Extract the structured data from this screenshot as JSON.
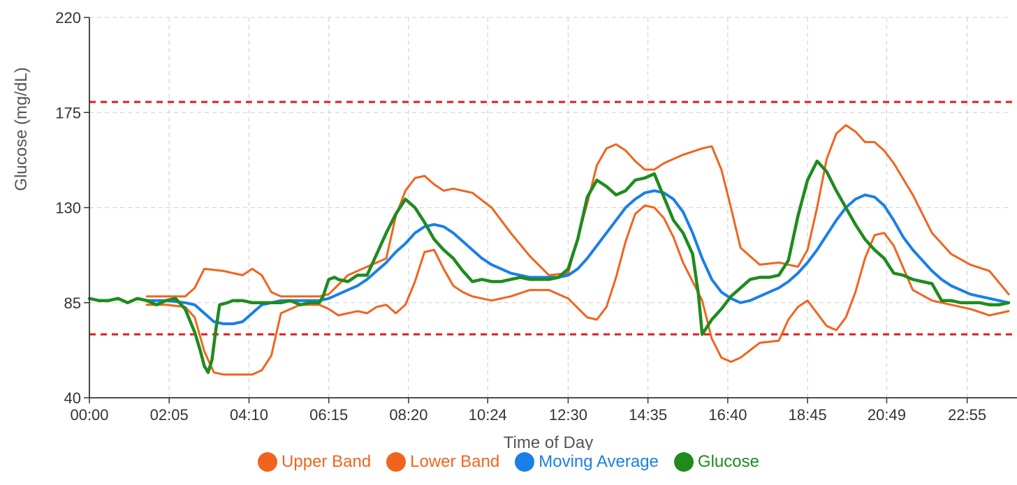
{
  "chart_data": {
    "type": "line",
    "xlabel": "Time of Day",
    "ylabel": "Glucose (mg/dL)",
    "xlim_hours": [
      0,
      24
    ],
    "ylim": [
      40,
      220
    ],
    "y_ticks": [
      40,
      85,
      130,
      175,
      220
    ],
    "x_ticks": [
      "00:00",
      "02:05",
      "04:10",
      "06:15",
      "08:20",
      "10:24",
      "12:30",
      "14:35",
      "16:40",
      "18:45",
      "20:49",
      "22:55"
    ],
    "x_tick_hours": [
      0,
      2.083,
      4.167,
      6.25,
      8.333,
      10.4,
      12.5,
      14.583,
      16.667,
      18.75,
      20.817,
      22.917
    ],
    "grid": true,
    "legend_position": "bottom",
    "reference_lines": [
      {
        "y": 180,
        "color": "#e8191c",
        "style": "dashed"
      },
      {
        "y": 70,
        "color": "#e8191c",
        "style": "dashed"
      }
    ],
    "series": [
      {
        "name": "Upper Band",
        "color": "#f0641e",
        "x_hours": [
          1.5,
          2.0,
          2.5,
          2.75,
          3.0,
          3.5,
          4.0,
          4.25,
          4.5,
          4.75,
          5.0,
          6.0,
          6.25,
          6.75,
          7.25,
          7.75,
          8.0,
          8.25,
          8.5,
          8.75,
          9.0,
          9.25,
          9.5,
          10.0,
          10.5,
          11.0,
          11.5,
          12.0,
          12.5,
          13.0,
          13.25,
          13.5,
          13.75,
          14.0,
          14.25,
          14.5,
          14.75,
          15.0,
          15.5,
          16.0,
          16.25,
          16.5,
          16.75,
          17.0,
          17.5,
          18.0,
          18.5,
          18.75,
          19.0,
          19.25,
          19.5,
          19.75,
          20.0,
          20.25,
          20.5,
          20.75,
          21.0,
          21.5,
          22.0,
          22.5,
          23.0,
          23.5,
          24.0
        ],
        "y": [
          88,
          88,
          88,
          92,
          101,
          100,
          98,
          101,
          98,
          90,
          88,
          88,
          89,
          98,
          102,
          106,
          126,
          138,
          144,
          145,
          141,
          138,
          139,
          137,
          130,
          118,
          107,
          98,
          99,
          132,
          150,
          158,
          160,
          157,
          152,
          148,
          148,
          151,
          155,
          158,
          159,
          148,
          130,
          111,
          103,
          104,
          102,
          110,
          130,
          153,
          165,
          169,
          166,
          161,
          161,
          157,
          151,
          136,
          118,
          108,
          103,
          100,
          89
        ]
      },
      {
        "name": "Lower Band",
        "color": "#f0641e",
        "x_hours": [
          1.5,
          2.0,
          2.5,
          2.75,
          3.0,
          3.25,
          3.5,
          4.0,
          4.25,
          4.5,
          4.75,
          5.0,
          5.5,
          6.0,
          6.25,
          6.5,
          7.0,
          7.25,
          7.5,
          7.75,
          8.0,
          8.25,
          8.5,
          8.75,
          9.0,
          9.25,
          9.5,
          9.75,
          10.0,
          10.5,
          11.0,
          11.5,
          12.0,
          12.5,
          13.0,
          13.25,
          13.5,
          13.75,
          14.0,
          14.25,
          14.5,
          14.75,
          15.0,
          15.25,
          15.5,
          16.0,
          16.25,
          16.5,
          16.75,
          17.0,
          17.5,
          18.0,
          18.25,
          18.5,
          18.75,
          19.0,
          19.25,
          19.5,
          19.75,
          20.0,
          20.25,
          20.5,
          20.75,
          21.0,
          21.5,
          22.0,
          22.5,
          23.0,
          23.5,
          24.0
        ],
        "y": [
          84,
          84,
          83,
          78,
          62,
          52,
          51,
          51,
          51,
          53,
          60,
          80,
          84,
          84,
          82,
          79,
          81,
          80,
          83,
          84,
          80,
          84,
          95,
          109,
          110,
          101,
          93,
          90,
          88,
          86,
          88,
          91,
          91,
          87,
          78,
          77,
          83,
          97,
          114,
          127,
          131,
          130,
          125,
          116,
          104,
          86,
          68,
          59,
          57,
          59,
          66,
          67,
          77,
          83,
          86,
          80,
          74,
          72,
          78,
          90,
          106,
          117,
          118,
          112,
          91,
          86,
          84,
          82,
          79,
          81
        ]
      },
      {
        "name": "Moving Average",
        "color": "#1a7fe8",
        "x_hours": [
          1.5,
          2.0,
          2.5,
          2.75,
          3.0,
          3.25,
          3.5,
          3.75,
          4.0,
          4.25,
          4.5,
          5.0,
          5.5,
          6.0,
          6.25,
          6.5,
          6.75,
          7.0,
          7.25,
          7.5,
          7.75,
          8.0,
          8.25,
          8.5,
          8.75,
          9.0,
          9.25,
          9.5,
          9.75,
          10.0,
          10.25,
          10.5,
          10.75,
          11.0,
          11.25,
          11.5,
          11.75,
          12.0,
          12.25,
          12.5,
          12.75,
          13.0,
          13.25,
          13.5,
          13.75,
          14.0,
          14.25,
          14.5,
          14.75,
          15.0,
          15.25,
          15.5,
          15.75,
          16.0,
          16.25,
          16.5,
          16.75,
          17.0,
          17.25,
          17.5,
          17.75,
          18.0,
          18.25,
          18.5,
          18.75,
          19.0,
          19.25,
          19.5,
          19.75,
          20.0,
          20.25,
          20.5,
          20.75,
          21.0,
          21.25,
          21.5,
          21.75,
          22.0,
          22.25,
          22.5,
          22.75,
          23.0,
          23.25,
          23.5,
          23.75,
          24.0
        ],
        "y": [
          86,
          86,
          85,
          84,
          80,
          76,
          75,
          75,
          76,
          80,
          84,
          86,
          86,
          86,
          87,
          89,
          91,
          93,
          96,
          100,
          104,
          109,
          113,
          118,
          121,
          122,
          121,
          118,
          114,
          110,
          106,
          103,
          101,
          99,
          98,
          97,
          97,
          97,
          97,
          98,
          101,
          106,
          112,
          118,
          124,
          130,
          134,
          137,
          138,
          137,
          134,
          128,
          118,
          106,
          96,
          90,
          87,
          85,
          86,
          88,
          90,
          92,
          95,
          99,
          104,
          110,
          117,
          124,
          130,
          134,
          136,
          135,
          131,
          124,
          116,
          110,
          105,
          100,
          96,
          93,
          91,
          89,
          88,
          87,
          86,
          85
        ]
      },
      {
        "name": "Glucose",
        "color": "#1f8b1f",
        "x_hours": [
          0,
          0.25,
          0.5,
          0.75,
          1.0,
          1.25,
          1.5,
          1.75,
          2.0,
          2.25,
          2.5,
          2.75,
          2.9,
          3.0,
          3.1,
          3.2,
          3.3,
          3.4,
          3.6,
          3.75,
          4.0,
          4.25,
          4.5,
          4.75,
          5.0,
          5.25,
          5.5,
          5.75,
          6.0,
          6.1,
          6.25,
          6.4,
          6.5,
          6.75,
          7.0,
          7.25,
          7.5,
          7.75,
          8.0,
          8.25,
          8.5,
          8.75,
          9.0,
          9.25,
          9.5,
          9.75,
          10.0,
          10.25,
          10.5,
          10.75,
          11.0,
          11.25,
          11.5,
          11.75,
          12.0,
          12.25,
          12.5,
          12.75,
          13.0,
          13.25,
          13.5,
          13.75,
          14.0,
          14.25,
          14.5,
          14.75,
          15.0,
          15.25,
          15.5,
          15.75,
          15.9,
          16.0,
          16.25,
          16.5,
          16.75,
          17.0,
          17.25,
          17.5,
          17.75,
          18.0,
          18.25,
          18.5,
          18.75,
          19.0,
          19.25,
          19.5,
          19.75,
          20.0,
          20.25,
          20.5,
          20.75,
          21.0,
          21.25,
          21.5,
          21.75,
          22.0,
          22.25,
          22.5,
          22.75,
          23.0,
          23.25,
          23.5,
          23.75,
          24.0
        ],
        "y": [
          87,
          86,
          86,
          87,
          85,
          87,
          86,
          84,
          86,
          87,
          82,
          71,
          62,
          55,
          52,
          58,
          72,
          84,
          85,
          86,
          86,
          85,
          85,
          85,
          85,
          86,
          84,
          85,
          85,
          88,
          96,
          97,
          96,
          95,
          98,
          98,
          108,
          118,
          127,
          134,
          130,
          123,
          115,
          110,
          106,
          100,
          95,
          96,
          95,
          95,
          96,
          97,
          96,
          96,
          96,
          97,
          101,
          115,
          135,
          143,
          140,
          136,
          138,
          143,
          144,
          146,
          135,
          124,
          118,
          108,
          89,
          70,
          77,
          82,
          88,
          92,
          96,
          97,
          97,
          98,
          105,
          126,
          143,
          152,
          147,
          138,
          130,
          122,
          115,
          110,
          106,
          99,
          98,
          96,
          95,
          94,
          86,
          86,
          85,
          85,
          85,
          84,
          84,
          85
        ]
      }
    ]
  },
  "legend": {
    "items": [
      {
        "label": "Upper Band",
        "color": "#f0641e"
      },
      {
        "label": "Lower Band",
        "color": "#f0641e"
      },
      {
        "label": "Moving Average",
        "color": "#1a7fe8"
      },
      {
        "label": "Glucose",
        "color": "#1f8b1f"
      }
    ]
  }
}
